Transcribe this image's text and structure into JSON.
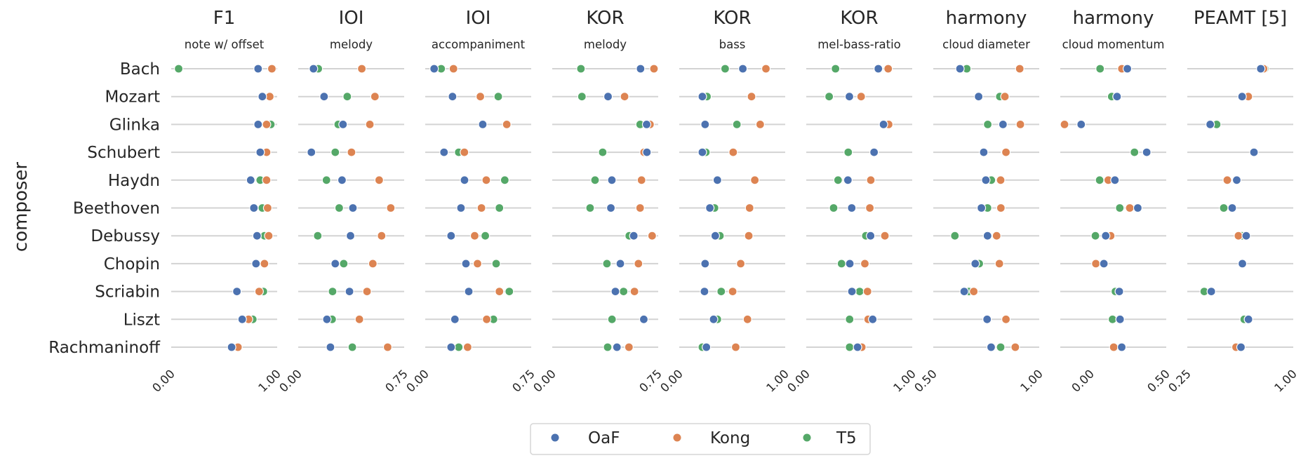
{
  "chart_data": {
    "type": "scatter",
    "ylabel": "composer",
    "categories": [
      "Bach",
      "Mozart",
      "Glinka",
      "Schubert",
      "Haydn",
      "Beethoven",
      "Debussy",
      "Chopin",
      "Scriabin",
      "Liszt",
      "Rachmaninoff"
    ],
    "legend": {
      "placement": "bottom-center",
      "entries": [
        {
          "name": "OaF",
          "color": "#4c72b0"
        },
        {
          "name": "Kong",
          "color": "#dd8452"
        },
        {
          "name": "T5",
          "color": "#55a868"
        }
      ]
    },
    "grid": "horizontal row lines",
    "panels": [
      {
        "title": "F1",
        "subtitle": "note w/ offset",
        "xlim": [
          0,
          1
        ],
        "ticks": [
          "0.00",
          "1.00"
        ],
        "tick_values": [
          0,
          1
        ],
        "OaF": [
          0.82,
          0.86,
          0.82,
          0.84,
          0.75,
          0.78,
          0.81,
          0.8,
          0.62,
          0.67,
          0.57
        ],
        "Kong": [
          0.95,
          0.93,
          0.9,
          0.9,
          0.9,
          0.91,
          0.92,
          0.88,
          0.83,
          0.73,
          0.63
        ],
        "T5": [
          0.07,
          0.93,
          0.94,
          0.9,
          0.84,
          0.86,
          0.88,
          0.88,
          0.87,
          0.77,
          0.63
        ]
      },
      {
        "title": "IOI",
        "subtitle": "melody",
        "xlim": [
          0,
          0.75
        ],
        "ticks": [
          "0.00",
          "0.75"
        ],
        "tick_values": [
          0,
          0.75
        ],
        "OaF": [
          0.108,
          0.183,
          0.317,
          0.093,
          0.31,
          0.387,
          0.37,
          0.262,
          0.363,
          0.203,
          0.228
        ],
        "Kong": [
          0.45,
          0.543,
          0.507,
          0.377,
          0.573,
          0.655,
          0.59,
          0.528,
          0.487,
          0.433,
          0.633
        ],
        "T5": [
          0.142,
          0.347,
          0.283,
          0.262,
          0.2,
          0.29,
          0.138,
          0.322,
          0.243,
          0.24,
          0.383
        ]
      },
      {
        "title": "IOI",
        "subtitle": "accompaniment",
        "xlim": [
          0,
          0.75
        ],
        "ticks": [
          "0.00",
          "0.75"
        ],
        "tick_values": [
          0,
          0.75
        ],
        "OaF": [
          0.063,
          0.193,
          0.407,
          0.133,
          0.278,
          0.253,
          0.183,
          0.288,
          0.308,
          0.21,
          0.183
        ],
        "Kong": [
          0.2,
          0.39,
          0.577,
          0.277,
          0.432,
          0.398,
          0.35,
          0.37,
          0.525,
          0.435,
          0.3
        ],
        "T5": [
          0.113,
          0.517,
          0.577,
          0.237,
          0.563,
          0.525,
          0.425,
          0.502,
          0.595,
          0.483,
          0.237
        ]
      },
      {
        "title": "KOR",
        "subtitle": "melody",
        "xlim": [
          0,
          0.75
        ],
        "ticks": [
          "0.00",
          "0.75"
        ],
        "tick_values": [
          0,
          0.75
        ],
        "OaF": [
          0.625,
          0.395,
          0.668,
          0.67,
          0.422,
          0.415,
          0.577,
          0.482,
          0.447,
          0.648,
          0.458
        ],
        "Kong": [
          0.72,
          0.512,
          0.692,
          0.65,
          0.632,
          0.622,
          0.707,
          0.61,
          0.582,
          0.648,
          0.543
        ],
        "T5": [
          0.203,
          0.21,
          0.622,
          0.357,
          0.303,
          0.268,
          0.545,
          0.387,
          0.505,
          0.423,
          0.392
        ]
      },
      {
        "title": "KOR",
        "subtitle": "bass",
        "xlim": [
          0,
          1
        ],
        "ticks": [
          "0.00",
          "1.00"
        ],
        "tick_values": [
          0,
          1
        ],
        "OaF": [
          0.6,
          0.218,
          0.244,
          0.218,
          0.36,
          0.289,
          0.34,
          0.244,
          0.238,
          0.324,
          0.256
        ],
        "Kong": [
          0.818,
          0.682,
          0.764,
          0.509,
          0.713,
          0.664,
          0.656,
          0.58,
          0.504,
          0.644,
          0.533
        ],
        "T5": [
          0.433,
          0.262,
          0.544,
          0.251,
          0.36,
          0.333,
          0.384,
          0.244,
          0.396,
          0.36,
          0.218
        ]
      },
      {
        "title": "KOR",
        "subtitle": "mel-bass-ratio",
        "xlim": [
          0,
          1
        ],
        "ticks": [
          "0.00",
          "1.00"
        ],
        "tick_values": [
          0,
          1
        ],
        "OaF": [
          0.68,
          0.407,
          0.729,
          0.64,
          0.393,
          0.429,
          0.607,
          0.411,
          0.431,
          0.627,
          0.484
        ],
        "Kong": [
          0.773,
          0.518,
          0.778,
          0.64,
          0.609,
          0.6,
          0.742,
          0.553,
          0.578,
          0.584,
          0.524
        ],
        "T5": [
          0.276,
          0.216,
          0.73,
          0.396,
          0.3,
          0.258,
          0.562,
          0.333,
          0.504,
          0.409,
          0.409
        ]
      },
      {
        "title": "harmony",
        "subtitle": "cloud diameter",
        "xlim": [
          0.5,
          1
        ],
        "ticks": [
          "0.50",
          "1.00"
        ],
        "tick_values": [
          0.5,
          1
        ],
        "OaF": [
          0.626,
          0.714,
          0.829,
          0.738,
          0.748,
          0.727,
          0.756,
          0.698,
          0.646,
          0.754,
          0.773
        ],
        "Kong": [
          0.908,
          0.838,
          0.911,
          0.843,
          0.818,
          0.819,
          0.799,
          0.812,
          0.691,
          0.843,
          0.887
        ],
        "T5": [
          0.658,
          0.814,
          0.757,
          0.84,
          0.774,
          0.756,
          0.602,
          0.717,
          0.668,
          0.754,
          0.818
        ]
      },
      {
        "title": "harmony",
        "subtitle": "cloud momentum",
        "xlim": [
          -0.2,
          0.5
        ],
        "ticks": [
          "0.00",
          "0.50"
        ],
        "tick_values": [
          0,
          0.5
        ],
        "OaF": [
          0.243,
          0.175,
          -0.062,
          0.371,
          0.161,
          0.312,
          0.1,
          0.088,
          0.19,
          0.195,
          0.206
        ],
        "Kong": [
          0.207,
          0.175,
          -0.172,
          0.37,
          0.117,
          0.259,
          0.133,
          0.035,
          0.19,
          0.195,
          0.153
        ],
        "T5": [
          0.063,
          0.14,
          -0.062,
          0.29,
          0.06,
          0.193,
          0.032,
          0.088,
          0.164,
          0.145,
          0.206
        ]
      },
      {
        "title": "PEAMT [5]",
        "subtitle": "",
        "xlim": [
          0.25,
          1
        ],
        "ticks": [
          "0.25",
          "1.00"
        ],
        "tick_values": [
          0.25,
          1
        ],
        "OaF": [
          0.77,
          0.638,
          0.412,
          0.722,
          0.6,
          0.568,
          0.667,
          0.64,
          0.42,
          0.683,
          0.63
        ],
        "Kong": [
          0.79,
          0.682,
          0.412,
          0.722,
          0.533,
          0.568,
          0.612,
          0.64,
          0.42,
          0.683,
          0.595
        ],
        "T5": [
          0.798,
          0.638,
          0.458,
          0.722,
          0.6,
          0.508,
          0.637,
          0.64,
          0.37,
          0.653,
          0.612
        ]
      }
    ]
  }
}
